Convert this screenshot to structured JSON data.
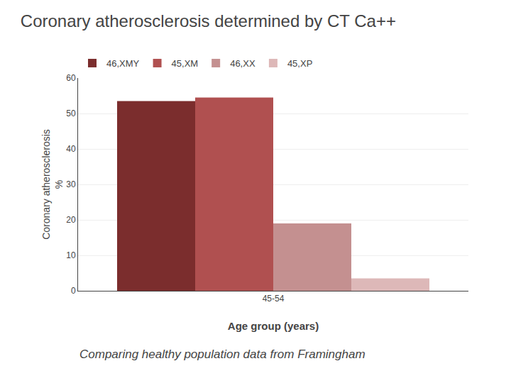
{
  "chart_data": {
    "type": "bar",
    "title": "Coronary atherosclerosis determined by CT Ca++",
    "subtitle": "Comparing healthy population data from Framingham",
    "xlabel": "Age group (years)",
    "ylabel": "Coronary atherosclerosis\n%",
    "categories": [
      "45-54"
    ],
    "series": [
      {
        "name": "46,XMY",
        "color": "#7B2D2D",
        "values": [
          53.5
        ]
      },
      {
        "name": "45,XM",
        "color": "#B05050",
        "values": [
          54.5
        ]
      },
      {
        "name": "46,XX",
        "color": "#C49090",
        "values": [
          19.0
        ]
      },
      {
        "name": "45,XP",
        "color": "#DDB8B8",
        "values": [
          3.5
        ]
      }
    ],
    "ylim": [
      0,
      60
    ],
    "yticks": [
      0,
      10,
      20,
      30,
      40,
      50,
      60
    ],
    "grid": true,
    "legend": "upper left"
  }
}
